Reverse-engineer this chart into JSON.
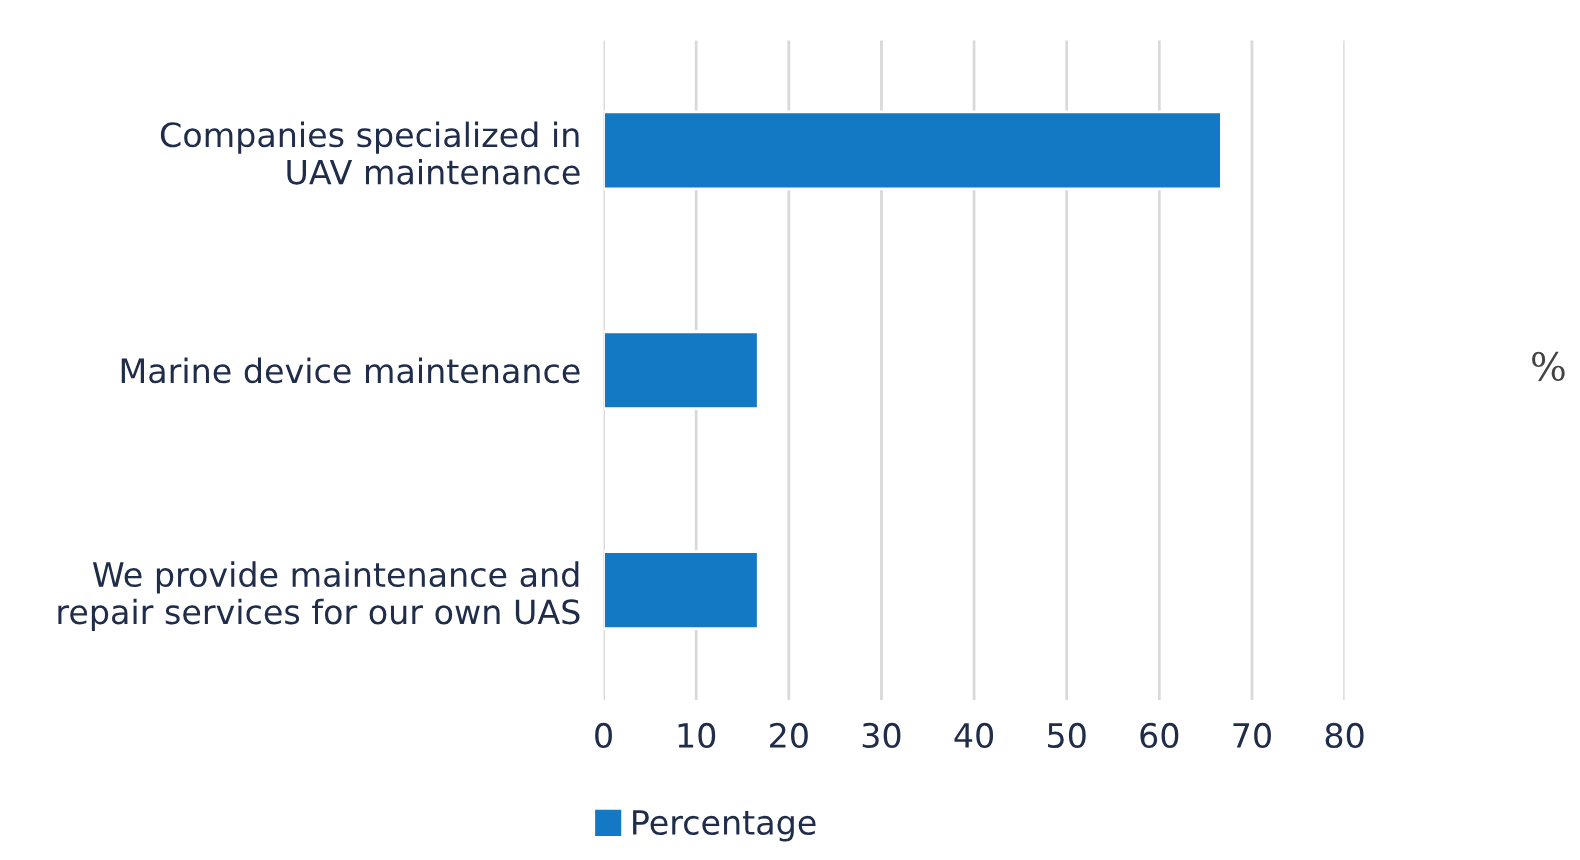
{
  "chart_data": {
    "type": "bar",
    "orientation": "horizontal",
    "categories": [
      "Companies specialized in\nUAV maintenance",
      "Marine device maintenance",
      "We provide maintenance and\nrepair services for our own UAS"
    ],
    "series": [
      {
        "name": "Percentage",
        "color": "#1479c4",
        "values": [
          66.7,
          16.7,
          16.7
        ]
      }
    ],
    "xlim": [
      0,
      80
    ],
    "xticks": [
      0,
      10,
      20,
      30,
      40,
      50,
      60,
      70,
      80
    ],
    "annotations": [
      "%"
    ],
    "grid": "x",
    "legend": "bottom left"
  }
}
